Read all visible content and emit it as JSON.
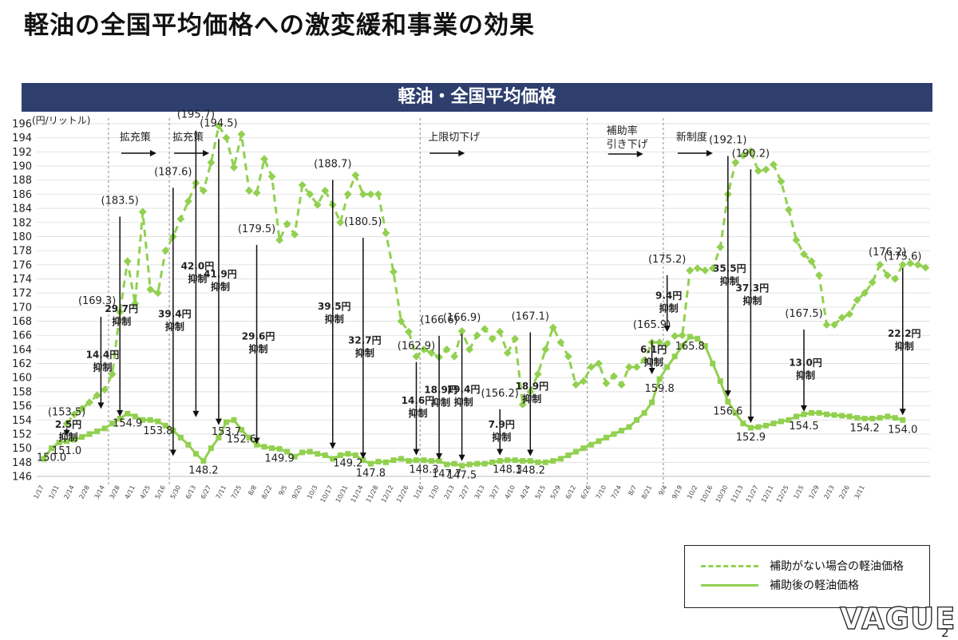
{
  "title": "軽油の全国平均価格への激変緩和事業の効果",
  "banner": "軽油・全国平均価格",
  "logo": "VAGUE",
  "page_number": "2",
  "legend": {
    "items": [
      {
        "label": "補助がない場合の軽油価格",
        "style": "dashed",
        "color": "#92d050"
      },
      {
        "label": "補助後の軽油価格",
        "style": "solid",
        "color": "#92d050"
      }
    ]
  },
  "chart_data": {
    "type": "line",
    "title": "軽油・全国平均価格",
    "ylabel": "(円/リットル)",
    "ylim": [
      146,
      196
    ],
    "yticks": [
      146,
      148,
      150,
      152,
      154,
      156,
      158,
      160,
      162,
      164,
      166,
      168,
      170,
      172,
      174,
      176,
      178,
      180,
      182,
      184,
      186,
      188,
      190,
      192,
      194,
      196
    ],
    "grid": "horizontal",
    "legend_position": "bottom-right",
    "x_tick_labels": [
      "1/17",
      "1/31",
      "2/14",
      "2/28",
      "3/14",
      "3/28",
      "4/11",
      "4/25",
      "5/16",
      "5/30",
      "6/13",
      "6/27",
      "7/11",
      "7/25",
      "8/8",
      "8/22",
      "9/5",
      "9/20",
      "10/3",
      "10/17",
      "10/31",
      "11/14",
      "11/28",
      "12/12",
      "12/26",
      "1/16",
      "1/30",
      "2/13",
      "2/27",
      "3/13",
      "3/27",
      "4/10",
      "4/24",
      "5/15",
      "5/29",
      "6/12",
      "6/26",
      "7/10",
      "7/24",
      "8/7",
      "8/21",
      "9/4",
      "9/19",
      "10/2",
      "10/16",
      "10/30",
      "11/13",
      "11/27",
      "12/11",
      "12/25",
      "1/15",
      "1/29",
      "2/13",
      "2/26",
      "3/11"
    ],
    "x_tick_positions": [
      0,
      2,
      4,
      6,
      8,
      10,
      12,
      14,
      16,
      18,
      20,
      22,
      24,
      26,
      28,
      30,
      32,
      34,
      36,
      38,
      40,
      42,
      44,
      46,
      48,
      50,
      52,
      54,
      56,
      58,
      60,
      62,
      64,
      66,
      68,
      70,
      72,
      74,
      76,
      78,
      80,
      82,
      84,
      86,
      88,
      90,
      92,
      94,
      96,
      98,
      100,
      102,
      104,
      106,
      108
    ],
    "dividers": [
      8.5,
      16.5,
      49.5,
      71.5,
      81.5
    ],
    "phases": [
      "拡充策",
      "拡充策",
      "上限切下げ",
      "補助率\n引き下げ",
      "新制度"
    ],
    "series": [
      {
        "name": "補助がない場合の軽油価格",
        "style": "dashed",
        "color": "#92d050",
        "x_start": 3,
        "values": [
          153.5,
          154.8,
          155.6,
          156.5,
          157.5,
          158.3,
          160.5,
          169.3,
          176.5,
          170.5,
          183.5,
          172.5,
          172.0,
          178.0,
          180.0,
          182.5,
          185.0,
          187.6,
          186.5,
          190.5,
          195.7,
          194.0,
          189.8,
          194.5,
          186.5,
          186.2,
          191.0,
          188.5,
          179.5,
          181.8,
          180.3,
          187.3,
          186.0,
          184.5,
          186.5,
          184.5,
          182.0,
          186.0,
          188.7,
          186.0,
          186.0,
          186.0,
          180.5,
          175.0,
          168.0,
          166.5,
          163.0,
          164.0,
          163.5,
          162.9,
          164.0,
          163.0,
          166.6,
          164.0,
          166.0,
          166.9,
          165.5,
          166.5,
          163.5,
          165.5,
          156.2,
          158.0,
          160.5,
          164.0,
          167.1,
          165.0,
          163.0,
          159.0,
          159.5,
          161.5,
          162.0,
          159.2,
          160.2,
          159.0,
          161.5,
          161.5,
          162.5,
          165.0,
          165.0,
          164.8,
          165.9,
          166.0,
          175.2,
          175.5,
          175.2,
          175.5,
          178.5,
          186.0,
          190.5,
          191.5,
          192.1,
          189.3,
          189.5,
          190.2,
          187.8,
          183.8,
          179.5,
          177.5,
          176.5,
          174.5,
          167.5,
          167.5,
          168.5,
          169.0,
          171.0,
          172.0,
          173.5,
          176.0,
          174.5,
          174.0,
          176.0,
          176.2,
          176.0,
          175.6
        ]
      },
      {
        "name": "補助後の軽油価格",
        "style": "solid",
        "color": "#92d050",
        "x_start": 0,
        "values": [
          148.5,
          150.0,
          150.8,
          151.0,
          151.2,
          151.6,
          152.0,
          152.4,
          152.8,
          153.5,
          154.2,
          154.9,
          154.5,
          154.0,
          154.0,
          153.8,
          153.2,
          152.5,
          151.5,
          150.5,
          149.2,
          148.2,
          150.0,
          151.5,
          153.7,
          154.0,
          152.6,
          151.5,
          150.5,
          150.2,
          150.0,
          149.9,
          149.5,
          148.8,
          149.4,
          149.5,
          149.2,
          149.0,
          148.5,
          149.0,
          149.2,
          149.0,
          148.3,
          147.8,
          148.1,
          148.0,
          148.3,
          148.5,
          148.2,
          148.3,
          148.3,
          148.2,
          148.2,
          147.7,
          147.8,
          147.5,
          147.7,
          147.8,
          147.8,
          148.0,
          148.2,
          148.3,
          148.3,
          148.2,
          148.2,
          148.0,
          148.0,
          148.2,
          148.5,
          149.0,
          149.5,
          150.0,
          150.5,
          151.0,
          151.5,
          152.0,
          152.5,
          153.0,
          154.0,
          155.0,
          156.5,
          159.8,
          161.5,
          163.0,
          164.5,
          165.8,
          165.5,
          164.5,
          162.0,
          159.5,
          156.6,
          155.0,
          153.5,
          152.9,
          153.0,
          153.2,
          153.5,
          153.8,
          154.0,
          154.5,
          154.8,
          155.0,
          155.0,
          154.8,
          154.7,
          154.6,
          154.5,
          154.3,
          154.2,
          154.2,
          154.3,
          154.5,
          154.3,
          154.0
        ]
      }
    ],
    "annotations": {
      "point_labels": [
        {
          "text": "(153.5)",
          "x": 3,
          "y": 153.5
        },
        {
          "text": "(169.3)",
          "x": 7,
          "y": 169.3
        },
        {
          "text": "(183.5)",
          "x": 10,
          "y": 183.5
        },
        {
          "text": "(187.6)",
          "x": 17,
          "y": 187.6
        },
        {
          "text": "(195.7)",
          "x": 20,
          "y": 195.7
        },
        {
          "text": "(194.5)",
          "x": 23,
          "y": 194.5
        },
        {
          "text": "(179.5)",
          "x": 28,
          "y": 179.5
        },
        {
          "text": "(188.7)",
          "x": 38,
          "y": 188.7
        },
        {
          "text": "(180.5)",
          "x": 42,
          "y": 180.5
        },
        {
          "text": "(162.9)",
          "x": 49,
          "y": 162.9
        },
        {
          "text": "(166.6)",
          "x": 52,
          "y": 166.6
        },
        {
          "text": "(166.9)",
          "x": 55,
          "y": 166.9
        },
        {
          "text": "(156.2)",
          "x": 60,
          "y": 156.2
        },
        {
          "text": "(167.1)",
          "x": 64,
          "y": 167.1
        },
        {
          "text": "(165.9)",
          "x": 80,
          "y": 165.9
        },
        {
          "text": "(175.2)",
          "x": 82,
          "y": 175.2
        },
        {
          "text": "(192.1)",
          "x": 90,
          "y": 192.1
        },
        {
          "text": "(190.2)",
          "x": 93,
          "y": 190.2
        },
        {
          "text": "(167.5)",
          "x": 100,
          "y": 167.5
        },
        {
          "text": "(176.2)",
          "x": 111,
          "y": 176.2
        },
        {
          "text": "(175.6)",
          "x": 113,
          "y": 175.6
        },
        {
          "text": "151.0",
          "x": 3,
          "y": 151.0
        },
        {
          "text": "150.0",
          "x": 1,
          "y": 150.0
        },
        {
          "text": "154.9",
          "x": 11,
          "y": 154.9
        },
        {
          "text": "153.8",
          "x": 15,
          "y": 153.8
        },
        {
          "text": "148.2",
          "x": 21,
          "y": 148.2
        },
        {
          "text": "153.7",
          "x": 24,
          "y": 153.7
        },
        {
          "text": "152.6",
          "x": 26,
          "y": 152.6
        },
        {
          "text": "149.9",
          "x": 31,
          "y": 149.9
        },
        {
          "text": "149.2",
          "x": 40,
          "y": 149.2
        },
        {
          "text": "147.8",
          "x": 43,
          "y": 147.8
        },
        {
          "text": "148.3",
          "x": 50,
          "y": 148.3
        },
        {
          "text": "147.7",
          "x": 53,
          "y": 147.7
        },
        {
          "text": "147.5",
          "x": 55,
          "y": 147.5
        },
        {
          "text": "148.3",
          "x": 61,
          "y": 148.3
        },
        {
          "text": "148.2",
          "x": 64,
          "y": 148.2
        },
        {
          "text": "159.8",
          "x": 81,
          "y": 159.8
        },
        {
          "text": "165.8",
          "x": 85,
          "y": 165.8
        },
        {
          "text": "156.6",
          "x": 90,
          "y": 156.6
        },
        {
          "text": "152.9",
          "x": 93,
          "y": 152.9
        },
        {
          "text": "154.5",
          "x": 100,
          "y": 154.5
        },
        {
          "text": "154.2",
          "x": 108,
          "y": 154.2
        },
        {
          "text": "154.0",
          "x": 113,
          "y": 154.0
        }
      ],
      "reductions": [
        {
          "label": "2.5円\n抑制",
          "x": 3,
          "top": 153.5,
          "bottom": 151.0
        },
        {
          "label": "14.4円\n抑制",
          "x": 7.5,
          "top": 169.3,
          "bottom": 154.9
        },
        {
          "label": "29.7円\n抑制",
          "x": 10,
          "top": 183.5,
          "bottom": 153.8
        },
        {
          "label": "39.4円\n抑制",
          "x": 17,
          "top": 187.6,
          "bottom": 148.2
        },
        {
          "label": "42.0円\n抑制",
          "x": 20,
          "top": 195.7,
          "bottom": 153.7
        },
        {
          "label": "41.9円\n抑制",
          "x": 23,
          "top": 194.5,
          "bottom": 152.6
        },
        {
          "label": "29.6円\n抑制",
          "x": 28,
          "top": 179.5,
          "bottom": 149.9
        },
        {
          "label": "39.5円\n抑制",
          "x": 38,
          "top": 188.7,
          "bottom": 149.2
        },
        {
          "label": "32.7円\n抑制",
          "x": 42,
          "top": 180.5,
          "bottom": 147.8
        },
        {
          "label": "14.6円\n抑制",
          "x": 49,
          "top": 162.9,
          "bottom": 148.3
        },
        {
          "label": "18.9円\n抑制",
          "x": 52,
          "top": 166.6,
          "bottom": 147.7
        },
        {
          "label": "19.4円\n抑制",
          "x": 55,
          "top": 166.9,
          "bottom": 147.5
        },
        {
          "label": "7.9円\n抑制",
          "x": 60,
          "top": 156.2,
          "bottom": 148.3
        },
        {
          "label": "18.9円\n抑制",
          "x": 64,
          "top": 167.1,
          "bottom": 148.2
        },
        {
          "label": "6.1円\n抑制",
          "x": 80,
          "top": 165.9,
          "bottom": 159.8
        },
        {
          "label": "9.4円\n抑制",
          "x": 82,
          "top": 175.2,
          "bottom": 165.8
        },
        {
          "label": "35.5円\n抑制",
          "x": 90,
          "top": 192.1,
          "bottom": 156.6
        },
        {
          "label": "37.3円\n抑制",
          "x": 93,
          "top": 190.2,
          "bottom": 152.9
        },
        {
          "label": "13.0円\n抑制",
          "x": 100,
          "top": 167.5,
          "bottom": 154.5
        },
        {
          "label": "22.2円\n抑制",
          "x": 113,
          "top": 176.2,
          "bottom": 154.0
        }
      ]
    }
  }
}
